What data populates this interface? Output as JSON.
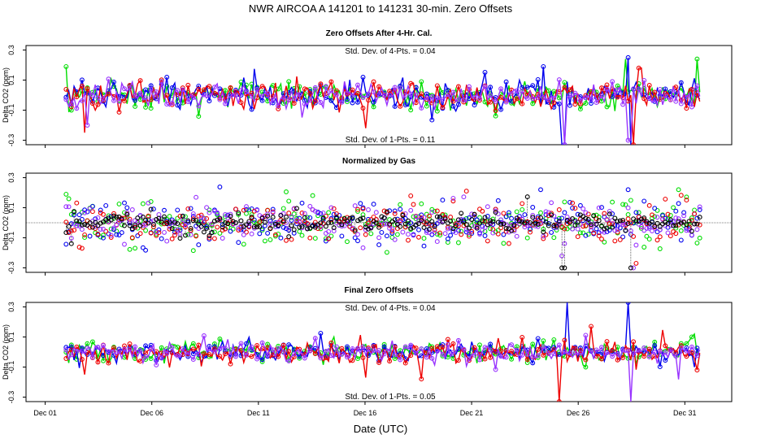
{
  "figure": {
    "title": "NWR   AIRCOA A   141201 to 141231   30-min. Zero Offsets",
    "xlabel": "Date (UTC)",
    "x_ticks": [
      "Dec 01",
      "Dec 06",
      "Dec 11",
      "Dec 16",
      "Dec 21",
      "Dec 26",
      "Dec 31"
    ],
    "x_tick_days": [
      1,
      6,
      11,
      16,
      21,
      26,
      31
    ]
  },
  "series_colors": {
    "green": "#00dd00",
    "blue": "#0000ee",
    "red": "#ee0000",
    "purple": "#9933ff",
    "black": "#000000"
  },
  "chart_data": [
    {
      "type": "line",
      "panel": "top",
      "title": "Zero Offsets After 4-Hr. Cal.",
      "ylabel": "Delta CO2 (ppm)",
      "yticks": [
        0.3,
        0.1,
        -0.1,
        -0.3
      ],
      "ytick_labels": [
        "0.3",
        "0.1",
        "-0.1",
        "-0.3"
      ],
      "xlim": [
        0.1,
        33.2
      ],
      "ylim": [
        -0.33,
        0.33
      ],
      "annotation_top": "Std. Dev. of 4-Pts. = 0.04",
      "annotation_bottom": "Std. Dev. of 1-Pts. = 0.11",
      "x_range_days": [
        1.98,
        31.7
      ],
      "gaps": [
        [
          25.5,
          25.6
        ]
      ],
      "series": [
        {
          "name": "green",
          "spread": 0.045,
          "spikes": [
            [
              28.2,
              0.24
            ],
            [
              31.6,
              0.24
            ],
            [
              2.0,
              0.19
            ]
          ]
        },
        {
          "name": "blue",
          "spread": 0.045,
          "spikes": [
            [
              25.3,
              -0.33
            ],
            [
              28.5,
              -0.33
            ],
            [
              28.3,
              0.25
            ],
            [
              24.4,
              0.19
            ]
          ]
        },
        {
          "name": "red",
          "spread": 0.045,
          "spikes": [
            [
              2.8,
              -0.25
            ],
            [
              16.0,
              -0.22
            ],
            [
              28.6,
              -0.33
            ],
            [
              28.9,
              0.18
            ]
          ]
        },
        {
          "name": "purple",
          "spread": 0.04,
          "spikes": [
            [
              25.4,
              -0.33
            ],
            [
              28.4,
              -0.3
            ],
            [
              3.0,
              -0.2
            ]
          ]
        }
      ]
    },
    {
      "type": "scatter",
      "panel": "middle",
      "title": "Normalized by Gas",
      "ylabel": "Delta CO2 (ppm)",
      "yticks": [
        0.3,
        0.1,
        -0.1,
        -0.3
      ],
      "ytick_labels": [
        "0.3",
        "0.1",
        "-0.1",
        "-0.3"
      ],
      "xlim": [
        0.1,
        33.2
      ],
      "ylim": [
        -0.33,
        0.33
      ],
      "baseline": 0.0,
      "x_range_days": [
        1.98,
        31.7
      ],
      "series": [
        {
          "name": "green",
          "spread": 0.07,
          "spikes": [
            [
              2.0,
              0.19
            ],
            [
              30.7,
              0.22
            ]
          ]
        },
        {
          "name": "blue",
          "spread": 0.07,
          "spikes": [
            [
              15.7,
              -0.12
            ],
            [
              28.3,
              0.22
            ]
          ]
        },
        {
          "name": "red",
          "spread": 0.07,
          "spikes": [
            [
              28.7,
              -0.27
            ],
            [
              2.7,
              -0.17
            ]
          ]
        },
        {
          "name": "purple",
          "spread": 0.06,
          "spikes": [
            [
              28.6,
              -0.3
            ],
            [
              25.2,
              -0.22
            ]
          ]
        },
        {
          "name": "black",
          "spread": 0.03,
          "spikes": [
            [
              25.3,
              -0.3
            ],
            [
              28.5,
              -0.3
            ]
          ]
        }
      ]
    },
    {
      "type": "line",
      "panel": "bottom",
      "title": "Final Zero Offsets",
      "ylabel": "Delta CO2 (ppm)",
      "yticks": [
        0.3,
        0.1,
        -0.1,
        -0.3
      ],
      "ytick_labels": [
        "0.3",
        "0.1",
        "-0.1",
        "-0.3"
      ],
      "xlim": [
        0.1,
        33.2
      ],
      "ylim": [
        -0.33,
        0.33
      ],
      "annotation_top": "Std. Dev. of 4-Pts. = 0.04",
      "annotation_bottom": "Std. Dev. of 1-Pts. = 0.05",
      "x_range_days": [
        1.98,
        31.7
      ],
      "series": [
        {
          "name": "green",
          "spread": 0.035,
          "spikes": [
            [
              31.5,
              0.12
            ],
            [
              26.3,
              -0.1
            ]
          ]
        },
        {
          "name": "blue",
          "spread": 0.03,
          "spikes": [
            [
              25.5,
              0.33
            ],
            [
              28.3,
              0.33
            ],
            [
              31.5,
              -0.1
            ]
          ]
        },
        {
          "name": "red",
          "spread": 0.035,
          "spikes": [
            [
              25.1,
              -0.33
            ],
            [
              16.0,
              -0.17
            ],
            [
              2.9,
              -0.15
            ],
            [
              31.6,
              -0.12
            ]
          ]
        },
        {
          "name": "purple",
          "spread": 0.03,
          "spikes": [
            [
              28.5,
              -0.33
            ]
          ]
        }
      ]
    }
  ]
}
